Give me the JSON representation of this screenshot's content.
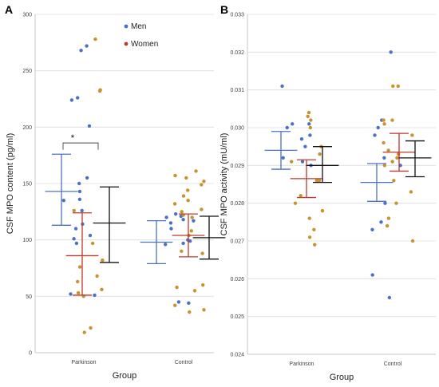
{
  "chart_data": [
    {
      "type": "scatter",
      "panel": "A",
      "ylabel": "CSF MPO  content (pg/ml)",
      "xlabel": "Group",
      "categories": [
        "Parkinson",
        "Control"
      ],
      "ylim": [
        0,
        300
      ],
      "yticks": [
        0,
        50,
        100,
        150,
        200,
        250,
        300
      ],
      "ytick_labels": [
        "0",
        "50",
        "100",
        "150",
        "200",
        "250",
        "300"
      ],
      "grid": true,
      "legend": [
        "Men",
        "Women"
      ],
      "annotation": "*",
      "series": [
        {
          "name": "Men",
          "color": "#4a72c4",
          "category": "Parkinson",
          "values": [
            272,
            268,
            226,
            224,
            201,
            155,
            150,
            143,
            136,
            135,
            126,
            114,
            110,
            104,
            101,
            97,
            52,
            51
          ]
        },
        {
          "name": "Women",
          "color": "#c9922b",
          "category": "Parkinson",
          "values": [
            278,
            233,
            232,
            126,
            97,
            82,
            76,
            68,
            63,
            56,
            53,
            50,
            22,
            18
          ]
        },
        {
          "name": "Men",
          "color": "#4a72c4",
          "category": "Control",
          "values": [
            123,
            121,
            120,
            118,
            117,
            115,
            110,
            100,
            99,
            97,
            96,
            45,
            44
          ]
        },
        {
          "name": "Women",
          "color": "#c9922b",
          "category": "Control",
          "values": [
            161,
            157,
            155,
            152,
            149,
            144,
            139,
            135,
            132,
            127,
            125,
            122,
            120,
            108,
            104,
            90,
            88,
            60,
            58,
            55,
            42,
            38,
            36
          ]
        }
      ],
      "summary": [
        {
          "category": "Parkinson",
          "name": "Men",
          "color": "#4a72c4",
          "mean": 143,
          "low": 113,
          "high": 176
        },
        {
          "category": "Parkinson",
          "name": "Women",
          "color": "#c0392b",
          "mean": 86,
          "low": 51,
          "high": 124
        },
        {
          "category": "Parkinson",
          "name": "Total",
          "color": "#111111",
          "mean": 115,
          "low": 80,
          "high": 147
        },
        {
          "category": "Control",
          "name": "Men",
          "color": "#4a72c4",
          "mean": 98,
          "low": 79,
          "high": 117
        },
        {
          "category": "Control",
          "name": "Women",
          "color": "#c0392b",
          "mean": 104,
          "low": 85,
          "high": 123
        },
        {
          "category": "Control",
          "name": "Total",
          "color": "#111111",
          "mean": 102,
          "low": 83,
          "high": 121
        }
      ]
    },
    {
      "type": "scatter",
      "panel": "B",
      "ylabel": "CSF MPO activity (mU/ml)",
      "xlabel": "Group",
      "categories": [
        "Parkinson",
        "Control"
      ],
      "ylim": [
        0.024,
        0.033
      ],
      "yticks": [
        0.024,
        0.025,
        0.026,
        0.027,
        0.028,
        0.029,
        0.03,
        0.031,
        0.032,
        0.033
      ],
      "ytick_labels": [
        "0.024",
        "0.025",
        "0.026",
        "0.027",
        "0.028",
        "0.029",
        "0.030",
        "0.031",
        "0.032",
        "0.033"
      ],
      "grid": true,
      "series": [
        {
          "name": "Men",
          "color": "#4a72c4",
          "category": "Parkinson",
          "values": [
            0.0311,
            0.0301,
            0.0301,
            0.03,
            0.0298,
            0.0297,
            0.0295,
            0.0292,
            0.0291,
            0.029
          ]
        },
        {
          "name": "Women",
          "color": "#c9922b",
          "category": "Parkinson",
          "values": [
            0.0304,
            0.0303,
            0.0302,
            0.03,
            0.0295,
            0.0293,
            0.0291,
            0.0286,
            0.0286,
            0.0282,
            0.028,
            0.0278,
            0.0276,
            0.0273,
            0.0271,
            0.0269
          ]
        },
        {
          "name": "Men",
          "color": "#4a72c4",
          "category": "Control",
          "values": [
            0.032,
            0.0302,
            0.03,
            0.0298,
            0.0292,
            0.029,
            0.028,
            0.0275,
            0.0273,
            0.0261,
            0.0255
          ]
        },
        {
          "name": "Women",
          "color": "#c9922b",
          "category": "Control",
          "values": [
            0.0311,
            0.0311,
            0.0302,
            0.0302,
            0.0301,
            0.0298,
            0.0296,
            0.0294,
            0.0293,
            0.0292,
            0.0291,
            0.029,
            0.0286,
            0.0283,
            0.028,
            0.0276,
            0.0274,
            0.027
          ]
        }
      ],
      "summary": [
        {
          "category": "Parkinson",
          "name": "Men",
          "color": "#4a72c4",
          "mean": 0.0294,
          "low": 0.0289,
          "high": 0.0299
        },
        {
          "category": "Parkinson",
          "name": "Women",
          "color": "#c0392b",
          "mean": 0.02865,
          "low": 0.02815,
          "high": 0.02915
        },
        {
          "category": "Parkinson",
          "name": "Total",
          "color": "#111111",
          "mean": 0.029,
          "low": 0.02855,
          "high": 0.0295
        },
        {
          "category": "Control",
          "name": "Men",
          "color": "#4a72c4",
          "mean": 0.02855,
          "low": 0.02805,
          "high": 0.02905
        },
        {
          "category": "Control",
          "name": "Women",
          "color": "#c0392b",
          "mean": 0.02935,
          "low": 0.02885,
          "high": 0.02985
        },
        {
          "category": "Control",
          "name": "Total",
          "color": "#111111",
          "mean": 0.0292,
          "low": 0.0287,
          "high": 0.02965
        }
      ]
    }
  ]
}
